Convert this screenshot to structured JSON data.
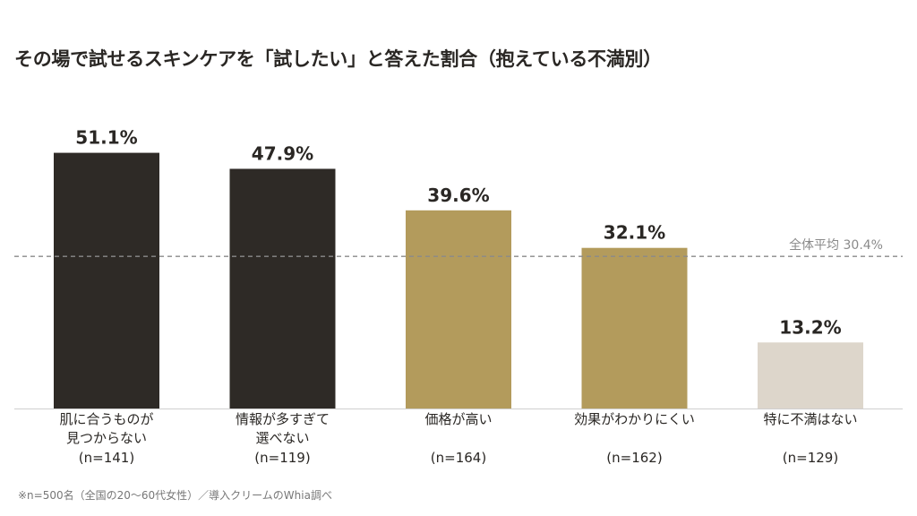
{
  "title": "その場で試せるスキンケアを「試したい」と答えた割合（抱えている不満別）",
  "footnote": "※n=500名（全国の20〜60代女性）／導入クリームのWhia調べ",
  "average_label": "全体平均 30.4%",
  "colors": {
    "dark": "#2e2a26",
    "gold": "#b39b5c",
    "light": "#ddd6cb",
    "average_line": "#8a8a8a",
    "baseline": "#cfcfcf"
  },
  "chart_data": {
    "type": "bar",
    "title": "その場で試せるスキンケアを「試したい」と答えた割合（抱えている不満別）",
    "categories": [
      [
        "肌に合うものが",
        "見つからない"
      ],
      [
        "情報が多すぎて",
        "選べない"
      ],
      [
        "価格が高い"
      ],
      [
        "効果がわかりにくい"
      ],
      [
        "特に不満はない"
      ]
    ],
    "sample_sizes": [
      "(n=141)",
      "(n=119)",
      "(n=164)",
      "(n=162)",
      "(n=129)"
    ],
    "values": [
      51.1,
      47.9,
      39.6,
      32.1,
      13.2
    ],
    "value_labels": [
      "51.1%",
      "47.9%",
      "39.6%",
      "32.1%",
      "13.2%"
    ],
    "bar_colors": [
      "dark",
      "dark",
      "gold",
      "gold",
      "light"
    ],
    "average": 30.4,
    "ylim": [
      0,
      55.5
    ],
    "unit": "%",
    "grid": false,
    "legend": "none"
  }
}
